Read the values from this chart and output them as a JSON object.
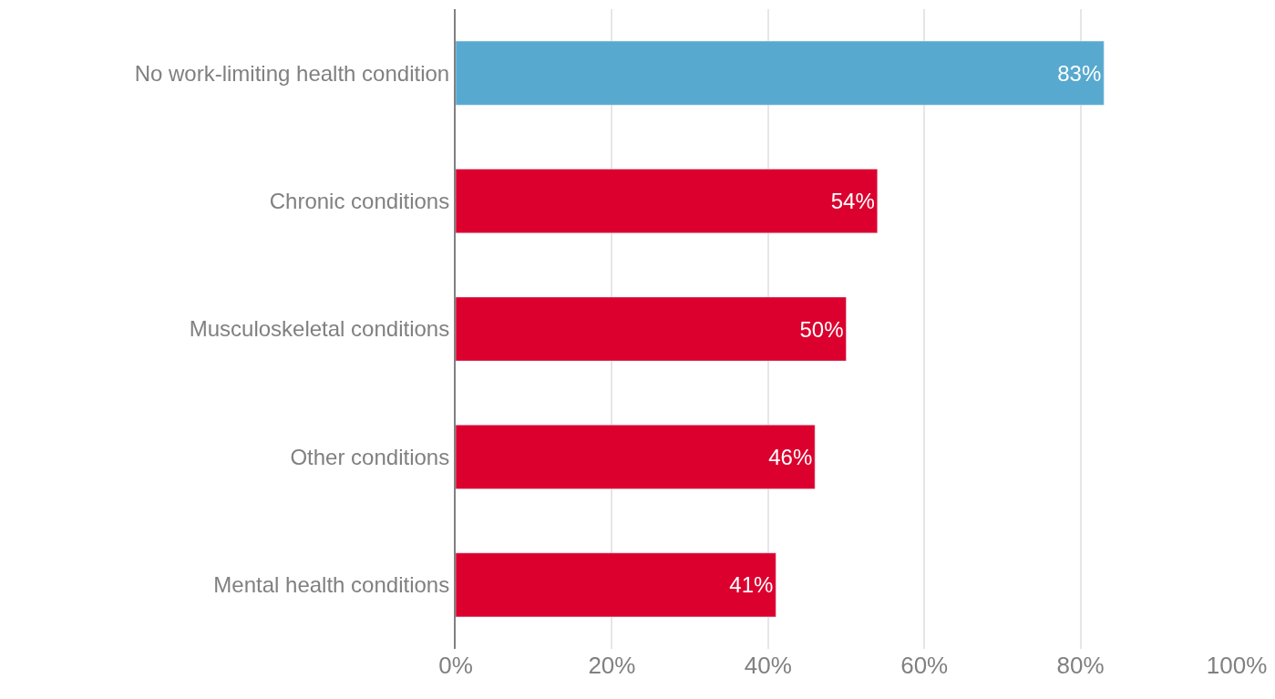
{
  "chart_data": {
    "type": "bar",
    "orientation": "horizontal",
    "categories": [
      "No work-limiting health condition",
      "Chronic conditions",
      "Musculoskeletal conditions",
      "Other conditions",
      "Mental health conditions"
    ],
    "values": [
      83,
      54,
      50,
      46,
      41
    ],
    "colors": [
      "#57a9cf",
      "#dc002e",
      "#dc002e",
      "#dc002e",
      "#dc002e"
    ],
    "value_labels": [
      "83%",
      "54%",
      "50%",
      "46%",
      "41%"
    ],
    "xlim": [
      0,
      100
    ],
    "xticks": [
      {
        "value": 0,
        "label": "0%"
      },
      {
        "value": 20,
        "label": "20%"
      },
      {
        "value": 40,
        "label": "40%"
      },
      {
        "value": 60,
        "label": "60%"
      },
      {
        "value": 80,
        "label": "80%"
      },
      {
        "value": 100,
        "label": "100%"
      }
    ],
    "grid": "x",
    "legend": false
  }
}
